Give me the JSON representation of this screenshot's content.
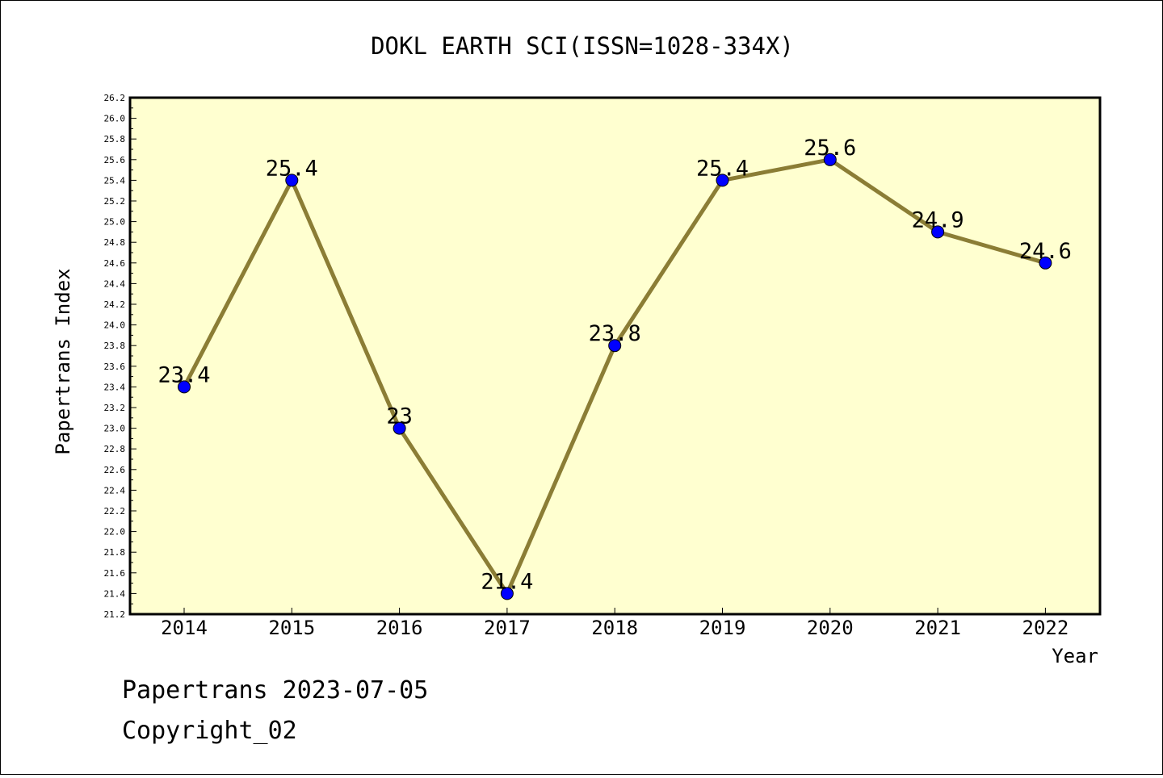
{
  "chart_data": {
    "type": "line",
    "title": "DOKL EARTH SCI(ISSN=1028-334X)",
    "xlabel": "Year",
    "ylabel": "Papertrans Index",
    "categories": [
      "2014",
      "2015",
      "2016",
      "2017",
      "2018",
      "2019",
      "2020",
      "2021",
      "2022"
    ],
    "values": [
      23.4,
      25.4,
      23,
      21.4,
      23.8,
      25.4,
      25.6,
      24.9,
      24.6
    ],
    "value_labels": [
      "23.4",
      "25.4",
      "23",
      "21.4",
      "23.8",
      "25.4",
      "25.6",
      "24.9",
      "24.6"
    ],
    "ylim": [
      21.2,
      26.2
    ],
    "yticks": [
      "21.2",
      "21.4",
      "21.6",
      "21.8",
      "22.0",
      "22.2",
      "22.4",
      "22.6",
      "22.8",
      "23.0",
      "23.2",
      "23.4",
      "23.6",
      "23.8",
      "24.0",
      "24.2",
      "24.4",
      "24.6",
      "24.8",
      "25.0",
      "25.2",
      "25.4",
      "25.6",
      "25.8",
      "26.0",
      "26.2"
    ],
    "grid": false,
    "colors": {
      "plot_background": "#ffffd0",
      "line": "#8b7d35",
      "marker": "#0000ff",
      "frame": "#000000"
    }
  },
  "footer": {
    "line1": "Papertrans 2023-07-05",
    "line2": "Copyright_02"
  }
}
